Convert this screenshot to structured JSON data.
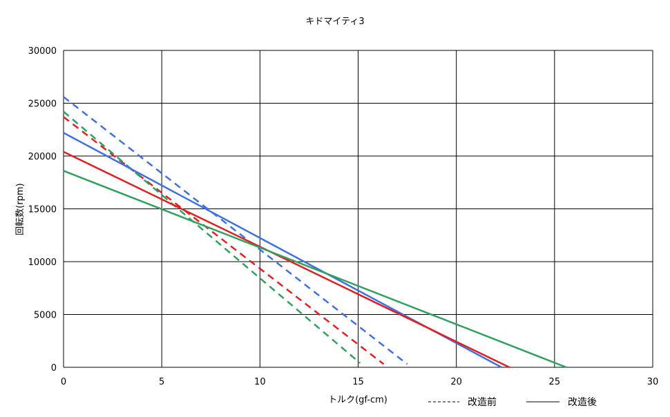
{
  "chart_data": {
    "type": "line",
    "title": "キドマイティ3",
    "xlabel": "トルク(gf-cm)",
    "ylabel": "回転数(rpm)",
    "xlim": [
      0,
      30
    ],
    "ylim": [
      0,
      30000
    ],
    "x_ticks": [
      "0",
      "5",
      "10",
      "15",
      "20",
      "25",
      "30"
    ],
    "y_ticks": [
      "0",
      "5000",
      "10000",
      "15000",
      "20000",
      "25000",
      "30000"
    ],
    "grid": true,
    "legend_position": "bottom-right",
    "legend": [
      {
        "label": "改造前",
        "style": "dashed"
      },
      {
        "label": "改造後",
        "style": "solid"
      }
    ],
    "series": [
      {
        "color": "#4070e0",
        "style": "dashed",
        "x": [
          0,
          17.5
        ],
        "y": [
          25600,
          300
        ]
      },
      {
        "color": "#e02020",
        "style": "dashed",
        "x": [
          0,
          16.3
        ],
        "y": [
          23700,
          300
        ]
      },
      {
        "color": "#30a060",
        "style": "dashed",
        "x": [
          0,
          15.1
        ],
        "y": [
          24200,
          400
        ]
      },
      {
        "color": "#4070e0",
        "style": "solid",
        "x": [
          0,
          22.3
        ],
        "y": [
          22200,
          0
        ]
      },
      {
        "color": "#e02020",
        "style": "solid",
        "x": [
          0,
          22.7
        ],
        "y": [
          20400,
          0
        ]
      },
      {
        "color": "#30a060",
        "style": "solid",
        "x": [
          0,
          25.6
        ],
        "y": [
          18600,
          0
        ]
      }
    ]
  }
}
